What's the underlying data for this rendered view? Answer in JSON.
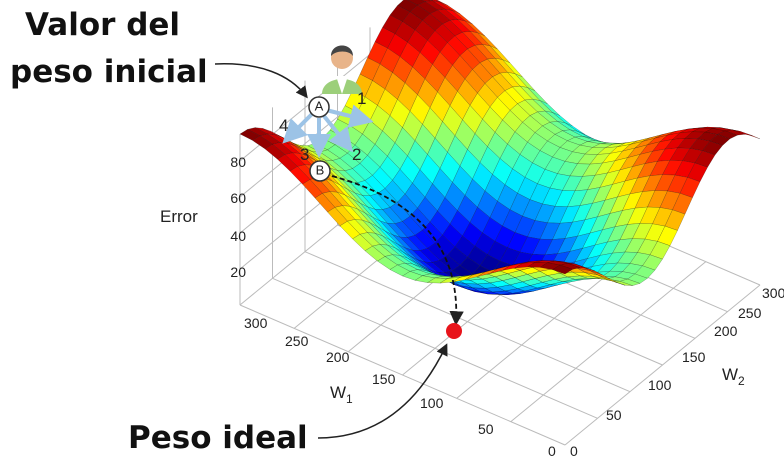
{
  "annotations": {
    "initial": [
      "Valor del",
      "peso inicial"
    ],
    "ideal": "Peso ideal"
  },
  "points": {
    "start": "A",
    "end": "B"
  },
  "directions": [
    "1",
    "2",
    "3",
    "4"
  ],
  "axes": {
    "z": {
      "label": "Error",
      "ticks": [
        "80",
        "60",
        "40",
        "20"
      ]
    },
    "w1": {
      "label": "W",
      "subscript": "1",
      "ticks": [
        "300",
        "250",
        "200",
        "150",
        "100",
        "50",
        "0"
      ]
    },
    "w2": {
      "label": "W",
      "subscript": "2",
      "ticks": [
        "0",
        "50",
        "100",
        "150",
        "200",
        "250",
        "300"
      ]
    }
  }
}
